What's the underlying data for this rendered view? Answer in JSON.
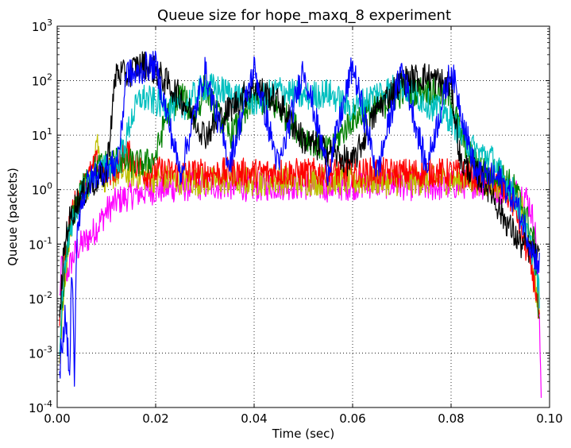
{
  "chart_data": {
    "type": "line",
    "title": "Queue size for hope_maxq_8 experiment",
    "xlabel": "Time (sec)",
    "ylabel": "Queue (packets)",
    "xlim": [
      0.0,
      0.1
    ],
    "ylim": [
      0.0001,
      1000
    ],
    "yscale": "log",
    "grid": true,
    "x_ticks": [
      {
        "value": 0.0,
        "label": "0.00"
      },
      {
        "value": 0.02,
        "label": "0.02"
      },
      {
        "value": 0.04,
        "label": "0.04"
      },
      {
        "value": 0.06,
        "label": "0.06"
      },
      {
        "value": 0.08,
        "label": "0.08"
      },
      {
        "value": 0.1,
        "label": "0.10"
      }
    ],
    "y_ticks": [
      {
        "value": 0.0001,
        "base": "10",
        "exp": "-4"
      },
      {
        "value": 0.001,
        "base": "10",
        "exp": "-3"
      },
      {
        "value": 0.01,
        "base": "10",
        "exp": "-2"
      },
      {
        "value": 0.1,
        "base": "10",
        "exp": "-1"
      },
      {
        "value": 1,
        "base": "10",
        "exp": "0"
      },
      {
        "value": 10,
        "base": "10",
        "exp": "1"
      },
      {
        "value": 100,
        "base": "10",
        "exp": "2"
      },
      {
        "value": 1000,
        "base": "10",
        "exp": "3"
      }
    ],
    "series": [
      {
        "color": "#ff00ff",
        "x": [
          0.0005,
          0.001,
          0.0015,
          0.002,
          0.003,
          0.004,
          0.005,
          0.006,
          0.007,
          0.008,
          0.01,
          0.012,
          0.015,
          0.02,
          0.025,
          0.03,
          0.035,
          0.04,
          0.045,
          0.05,
          0.055,
          0.06,
          0.065,
          0.07,
          0.075,
          0.08,
          0.085,
          0.09,
          0.093,
          0.095,
          0.096,
          0.097,
          0.0975,
          0.098,
          0.0983
        ],
        "y": [
          0.01,
          0.05,
          0.02,
          0.03,
          0.05,
          0.08,
          0.1,
          0.12,
          0.15,
          0.2,
          0.4,
          0.6,
          0.8,
          1.0,
          1.1,
          1.2,
          1.2,
          1.1,
          1.2,
          1.2,
          1.1,
          1.2,
          1.3,
          1.2,
          1.1,
          1.2,
          1.3,
          1.0,
          0.9,
          0.8,
          0.5,
          0.2,
          0.05,
          0.002,
          0.0002
        ]
      },
      {
        "color": "#bfbf00",
        "x": [
          0.0005,
          0.001,
          0.002,
          0.003,
          0.005,
          0.007,
          0.008,
          0.009,
          0.01,
          0.012,
          0.015,
          0.02,
          0.025,
          0.03,
          0.035,
          0.04,
          0.045,
          0.05,
          0.055,
          0.06,
          0.065,
          0.07,
          0.075,
          0.08,
          0.085,
          0.09,
          0.094,
          0.096,
          0.097,
          0.098
        ],
        "y": [
          0.001,
          0.005,
          0.05,
          0.3,
          0.8,
          1.5,
          10,
          2.0,
          1.5,
          2.0,
          2.0,
          1.6,
          1.5,
          1.4,
          1.5,
          1.4,
          1.5,
          1.4,
          1.5,
          1.4,
          1.5,
          1.4,
          1.5,
          1.5,
          1.5,
          1.2,
          0.6,
          0.1,
          0.02,
          0.005
        ]
      },
      {
        "color": "#ff0000",
        "x": [
          0.0005,
          0.001,
          0.002,
          0.003,
          0.005,
          0.008,
          0.01,
          0.012,
          0.014,
          0.016,
          0.018,
          0.02,
          0.025,
          0.03,
          0.035,
          0.04,
          0.045,
          0.05,
          0.055,
          0.06,
          0.065,
          0.07,
          0.075,
          0.08,
          0.085,
          0.09,
          0.093,
          0.095,
          0.097,
          0.098
        ],
        "y": [
          0.005,
          0.02,
          0.1,
          0.4,
          1.0,
          3.0,
          2.0,
          2.5,
          5.0,
          3.0,
          2.0,
          2.2,
          2.0,
          2.0,
          2.1,
          2.0,
          2.1,
          2.0,
          2.1,
          2.0,
          2.1,
          2.0,
          2.1,
          2.0,
          1.8,
          1.2,
          0.5,
          0.1,
          0.02,
          0.003
        ]
      },
      {
        "color": "#008000",
        "x": [
          0.0005,
          0.001,
          0.002,
          0.004,
          0.006,
          0.008,
          0.01,
          0.012,
          0.015,
          0.018,
          0.02,
          0.022,
          0.025,
          0.028,
          0.03,
          0.032,
          0.035,
          0.038,
          0.04,
          0.045,
          0.05,
          0.055,
          0.06,
          0.065,
          0.07,
          0.075,
          0.08,
          0.082,
          0.085,
          0.088,
          0.09,
          0.093,
          0.095,
          0.097,
          0.098
        ],
        "y": [
          0.0005,
          0.005,
          0.1,
          0.6,
          1.5,
          2.5,
          3.0,
          3.5,
          3.0,
          3.0,
          4.0,
          20,
          60,
          20,
          80,
          30,
          10,
          20,
          50,
          30,
          10,
          5,
          20,
          30,
          60,
          70,
          50,
          10,
          3.0,
          2.0,
          2.0,
          1.0,
          0.4,
          0.1,
          0.003
        ]
      },
      {
        "color": "#00bfbf",
        "x": [
          0.0005,
          0.001,
          0.002,
          0.004,
          0.006,
          0.008,
          0.01,
          0.012,
          0.014,
          0.015,
          0.017,
          0.02,
          0.025,
          0.03,
          0.035,
          0.04,
          0.045,
          0.05,
          0.055,
          0.06,
          0.065,
          0.07,
          0.075,
          0.08,
          0.082,
          0.085,
          0.088,
          0.09,
          0.093,
          0.095,
          0.097,
          0.098
        ],
        "y": [
          0.001,
          0.01,
          0.1,
          0.5,
          1.2,
          2.0,
          2.5,
          3.0,
          8.0,
          20,
          50,
          40,
          30,
          80,
          60,
          40,
          70,
          50,
          60,
          30,
          60,
          80,
          40,
          20,
          10,
          5.0,
          4.0,
          2.0,
          0.8,
          0.2,
          0.05,
          0.01
        ]
      },
      {
        "color": "#000000",
        "x": [
          0.0005,
          0.001,
          0.002,
          0.004,
          0.006,
          0.008,
          0.01,
          0.011,
          0.012,
          0.014,
          0.016,
          0.018,
          0.02,
          0.025,
          0.03,
          0.035,
          0.04,
          0.045,
          0.05,
          0.055,
          0.06,
          0.065,
          0.07,
          0.075,
          0.08,
          0.082,
          0.085,
          0.088,
          0.09,
          0.092,
          0.094,
          0.096,
          0.098
        ],
        "y": [
          0.003,
          0.03,
          0.2,
          0.6,
          1.0,
          1.5,
          2.0,
          20,
          150,
          120,
          180,
          200,
          150,
          50,
          10,
          30,
          80,
          40,
          8.0,
          5.0,
          3.0,
          30,
          100,
          120,
          80,
          3.0,
          2.0,
          1.0,
          0.4,
          0.2,
          0.1,
          0.08,
          0.05
        ]
      },
      {
        "color": "#0000ff",
        "x": [
          0.0005,
          0.0008,
          0.001,
          0.0015,
          0.002,
          0.0025,
          0.003,
          0.0035,
          0.004,
          0.005,
          0.006,
          0.008,
          0.01,
          0.012,
          0.013,
          0.014,
          0.016,
          0.018,
          0.02,
          0.025,
          0.03,
          0.035,
          0.04,
          0.045,
          0.05,
          0.055,
          0.06,
          0.065,
          0.07,
          0.075,
          0.08,
          0.085,
          0.09,
          0.093,
          0.095,
          0.097,
          0.098
        ],
        "y": [
          0.0003,
          0.002,
          0.0008,
          0.005,
          0.002,
          0.0003,
          0.05,
          0.0002,
          0.2,
          0.6,
          1.2,
          2.0,
          2.5,
          3.0,
          10,
          150,
          120,
          180,
          190,
          2.0,
          150,
          3.0,
          170,
          2.5,
          180,
          2.2,
          190,
          2.0,
          180,
          2.5,
          170,
          2.0,
          1.5,
          0.6,
          0.2,
          0.06,
          0.04
        ]
      }
    ]
  }
}
